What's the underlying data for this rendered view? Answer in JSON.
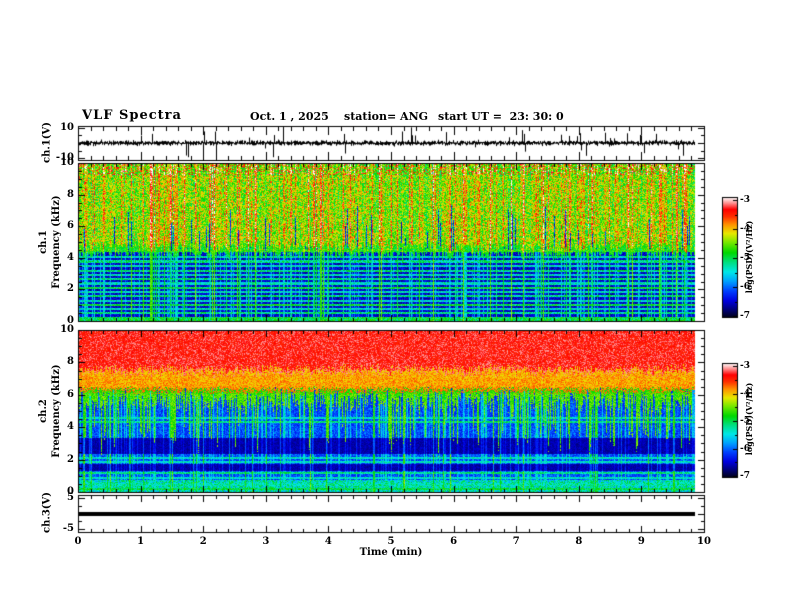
{
  "header": {
    "title": "VLF Spectra",
    "date": "Oct. 1 , 2025",
    "station": "station= ANG",
    "start_ut": "start UT =  23: 30: 0"
  },
  "xaxis": {
    "label": "Time (min)",
    "tick_labels": [
      "0",
      "1",
      "2",
      "3",
      "4",
      "5",
      "6",
      "7",
      "8",
      "9",
      "10"
    ],
    "tick_values": [
      0,
      1,
      2,
      3,
      4,
      5,
      6,
      7,
      8,
      9,
      10
    ],
    "range": [
      0,
      10
    ],
    "minor_step_min": 0.2,
    "data_end_min": 9.85
  },
  "colorbar": {
    "label": "log(PSD)(V²/Hz)",
    "tick_labels": [
      "-3",
      "-4",
      "-5",
      "-6",
      "-7"
    ],
    "value_range": [
      -7,
      -3
    ],
    "colormap_stops": [
      [
        0.0,
        "#000018"
      ],
      [
        0.06,
        "#000070"
      ],
      [
        0.14,
        "#0000e0"
      ],
      [
        0.22,
        "#0040ff"
      ],
      [
        0.3,
        "#00a0ff"
      ],
      [
        0.38,
        "#00e8e8"
      ],
      [
        0.46,
        "#00e080"
      ],
      [
        0.54,
        "#00d800"
      ],
      [
        0.62,
        "#70e800"
      ],
      [
        0.7,
        "#e8e800"
      ],
      [
        0.77,
        "#ff9800"
      ],
      [
        0.84,
        "#ff3000"
      ],
      [
        0.9,
        "#ff0000"
      ],
      [
        0.95,
        "#ff8888"
      ],
      [
        1.0,
        "#ffffff"
      ]
    ]
  },
  "chart_data": [
    {
      "id": "ch1-voltage",
      "type": "line",
      "ylabel": "ch.1(V)",
      "ytick_labels": [
        "10",
        "-10"
      ],
      "ytick_values": [
        10,
        -10
      ],
      "ylim": [
        -11,
        11
      ],
      "minor_step_v": 5,
      "description": "Noisy voltage trace centered on 0 V with frequent impulsive spikes reaching +/-10 V; data ends near 9.85 min",
      "noise_amp_v": 1.3,
      "spike_up_prob": 0.05,
      "spike_down_prob": 0.03,
      "seed": 42
    },
    {
      "id": "ch1-spectrogram",
      "type": "heatmap",
      "ylabel_channel": "ch.1",
      "ylabel_axis": "Frequency (kHz)",
      "ytick_labels": [
        "0",
        "2",
        "4",
        "6",
        "8",
        "10"
      ],
      "ytick_values": [
        0,
        2,
        4,
        6,
        8,
        10
      ],
      "ylim": [
        0,
        10
      ],
      "minor_step_khz": 0.5,
      "value_log10_range": [
        -7,
        -3
      ],
      "description": "Above ~4.6 kHz: yellow/green background with dense red vertical impulse streaks; below ~4.6 kHz: dark navy background crossed by many bright cyan/green horizontal lines and vertical streaks; bright green band near 4.5 kHz",
      "boundary_khz": 4.65,
      "upper_base": 0.62,
      "lower_base": 0.12,
      "streak_prob_strong": 0.1,
      "streak_prob_med": 0.22,
      "dark_gap_prob": 0.07,
      "hlines_khz_strength": [
        [
          0.55,
          0.45
        ],
        [
          0.8,
          0.4
        ],
        [
          1.05,
          0.5
        ],
        [
          1.3,
          0.4
        ],
        [
          1.6,
          0.45
        ],
        [
          1.85,
          0.4
        ],
        [
          2.1,
          0.5
        ],
        [
          2.4,
          0.4
        ],
        [
          2.7,
          0.45
        ],
        [
          2.95,
          0.4
        ],
        [
          3.2,
          0.45
        ],
        [
          3.5,
          0.4
        ],
        [
          3.8,
          0.45
        ],
        [
          4.1,
          0.4
        ],
        [
          4.5,
          0.55
        ]
      ],
      "seed": 12345
    },
    {
      "id": "ch2-spectrogram",
      "type": "heatmap",
      "ylabel_channel": "ch.2",
      "ylabel_axis": "Frequency (kHz)",
      "ytick_labels": [
        "0",
        "2",
        "4",
        "6",
        "8",
        "10"
      ],
      "ytick_values": [
        0,
        2,
        4,
        6,
        8,
        10
      ],
      "ylim": [
        0,
        10
      ],
      "minor_step_khz": 0.5,
      "value_log10_range": [
        -7,
        -3
      ],
      "description": "Solid red above ~7.5 kHz grading through orange/yellow to green near 6 kHz with green fingers extending down; blue/cyan below with dark navy bands near 1.5 and 2.4-3.3 kHz, bright cyan horizontal lines and vertical streaks",
      "red_top_khz": 7.5,
      "orange_khz": 6.3,
      "green_mean_khz": 5.7,
      "dark_bands_khz": [
        [
          1.35,
          1.75
        ],
        [
          2.4,
          3.35
        ]
      ],
      "hlines_khz_strength": [
        [
          0.2,
          0.5
        ],
        [
          0.5,
          0.42
        ],
        [
          0.9,
          0.4
        ],
        [
          1.2,
          0.45
        ],
        [
          1.9,
          0.4
        ],
        [
          2.15,
          0.4
        ],
        [
          4.35,
          0.45
        ],
        [
          4.6,
          0.4
        ]
      ],
      "streak_prob_strong": 0.1,
      "streak_prob_med": 0.18,
      "seed": 777
    },
    {
      "id": "ch3-voltage",
      "type": "line",
      "ylabel": "ch.3(V)",
      "ytick_labels": [
        "5",
        "-5"
      ],
      "ytick_values": [
        5,
        -5
      ],
      "ylim": [
        -6,
        6
      ],
      "minor_step_v": 2.5,
      "flat_value_v": 0,
      "line_thickness_px": 4,
      "description": "Flat thick black trace at 0 V ending near 9.85 min"
    }
  ]
}
